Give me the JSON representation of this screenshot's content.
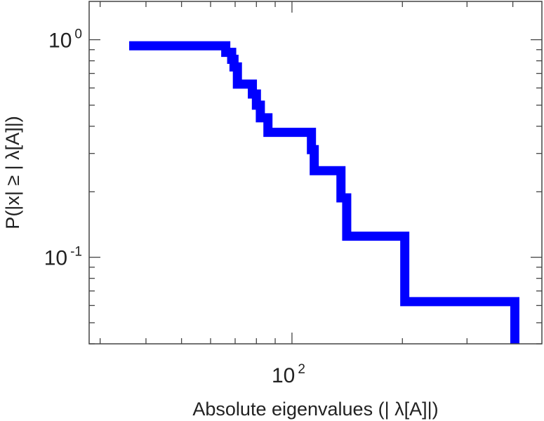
{
  "chart_data": {
    "type": "line",
    "title": "",
    "xlabel": "Absolute eigenvalues (|     λ[A]|)",
    "ylabel": "P(|x|  ≥ | λ[A]|)",
    "x_scale": "log",
    "y_scale": "log",
    "xlim": [
      28,
      480
    ],
    "ylim": [
      0.04,
      1.5
    ],
    "grid": false,
    "x_tick_labels": [
      {
        "value": 100,
        "base": "10",
        "exp": "2"
      }
    ],
    "y_tick_labels": [
      {
        "value": 1,
        "base": "10",
        "exp": "0"
      },
      {
        "value": 0.1,
        "base": "10",
        "exp": "-1"
      }
    ],
    "series": [
      {
        "color": "#0000ff",
        "style": "step",
        "points": [
          [
            36,
            0.938
          ],
          [
            66,
            0.938
          ],
          [
            66,
            0.875
          ],
          [
            68.5,
            0.875
          ],
          [
            68.5,
            0.8125
          ],
          [
            69.5,
            0.8125
          ],
          [
            69.5,
            0.75
          ],
          [
            71,
            0.75
          ],
          [
            71,
            0.625
          ],
          [
            78,
            0.625
          ],
          [
            78,
            0.5625
          ],
          [
            80,
            0.5625
          ],
          [
            80,
            0.5
          ],
          [
            82,
            0.5
          ],
          [
            82,
            0.4375
          ],
          [
            86,
            0.4375
          ],
          [
            86,
            0.375
          ],
          [
            113,
            0.375
          ],
          [
            113,
            0.3125
          ],
          [
            115,
            0.3125
          ],
          [
            115,
            0.25
          ],
          [
            136,
            0.25
          ],
          [
            136,
            0.1875
          ],
          [
            141,
            0.1875
          ],
          [
            141,
            0.125
          ],
          [
            203,
            0.125
          ],
          [
            203,
            0.0625
          ],
          [
            405,
            0.0625
          ],
          [
            405,
            0.04
          ]
        ]
      }
    ]
  }
}
